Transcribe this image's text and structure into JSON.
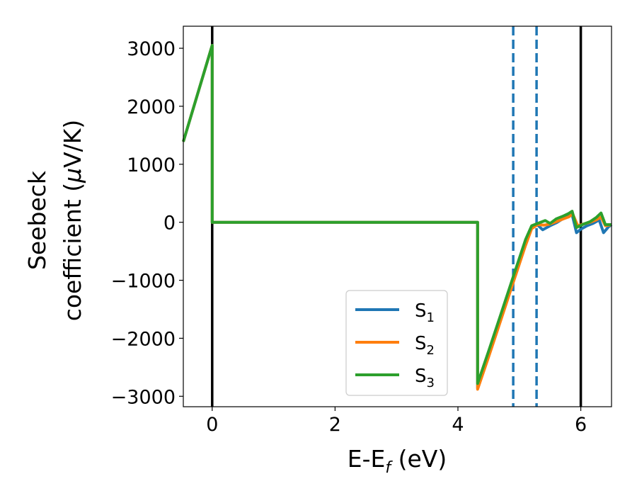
{
  "chart_data": {
    "type": "line",
    "title": "",
    "xlabel": "E-E",
    "xlabel_subscript": "f",
    "xlabel_units": " (eV)",
    "ylabel_line1": "Seebeck",
    "ylabel_line2": "coefficient  (",
    "ylabel_mu": "μ",
    "ylabel_units": "V/K)",
    "xlim": [
      -0.47,
      6.5
    ],
    "ylim": [
      -3180,
      3380
    ],
    "xticks": [
      0,
      2,
      4,
      6
    ],
    "xtick_labels": [
      "0",
      "2",
      "4",
      "6"
    ],
    "yticks": [
      3000,
      2000,
      1000,
      0,
      -1000,
      -2000,
      -3000
    ],
    "ytick_labels": [
      "3000",
      "2000",
      "1000",
      "0",
      "−1000",
      "−2000",
      "−3000"
    ],
    "grid": false,
    "legend_position": "lower-center",
    "vertical_lines": [
      {
        "x": 0.0,
        "style": "solid",
        "color": "#000000"
      },
      {
        "x": 6.0,
        "style": "solid",
        "color": "#000000"
      },
      {
        "x": 4.9,
        "style": "dashed",
        "color": "#1f77b4"
      },
      {
        "x": 5.28,
        "style": "dashed",
        "color": "#1f77b4"
      }
    ],
    "series": [
      {
        "name": "S",
        "subscript": "1",
        "color": "#1f77b4",
        "points": [
          [
            -0.47,
            1390
          ],
          [
            0.0,
            3050
          ],
          [
            0.0,
            0
          ],
          [
            4.32,
            0
          ],
          [
            4.32,
            -2860
          ],
          [
            4.5,
            -2300
          ],
          [
            4.7,
            -1650
          ],
          [
            4.9,
            -1000
          ],
          [
            5.1,
            -350
          ],
          [
            5.2,
            -80
          ],
          [
            5.3,
            -50
          ],
          [
            5.38,
            -130
          ],
          [
            5.5,
            -60
          ],
          [
            5.6,
            -10
          ],
          [
            5.72,
            70
          ],
          [
            5.8,
            110
          ],
          [
            5.86,
            130
          ],
          [
            5.93,
            -180
          ],
          [
            6.0,
            -120
          ],
          [
            6.1,
            -60
          ],
          [
            6.2,
            -20
          ],
          [
            6.3,
            40
          ],
          [
            6.37,
            -180
          ],
          [
            6.45,
            -80
          ],
          [
            6.5,
            -40
          ]
        ]
      },
      {
        "name": "S",
        "subscript": "2",
        "color": "#ff7f0e",
        "points": [
          [
            -0.47,
            1390
          ],
          [
            0.0,
            3050
          ],
          [
            0.0,
            0
          ],
          [
            4.32,
            0
          ],
          [
            4.32,
            -2880
          ],
          [
            4.5,
            -2320
          ],
          [
            4.7,
            -1680
          ],
          [
            4.9,
            -1040
          ],
          [
            5.1,
            -400
          ],
          [
            5.2,
            -110
          ],
          [
            5.3,
            -40
          ],
          [
            5.4,
            -50
          ],
          [
            5.5,
            -30
          ],
          [
            5.6,
            10
          ],
          [
            5.72,
            60
          ],
          [
            5.8,
            90
          ],
          [
            5.87,
            140
          ],
          [
            5.95,
            -60
          ],
          [
            6.05,
            -30
          ],
          [
            6.15,
            0
          ],
          [
            6.25,
            40
          ],
          [
            6.33,
            90
          ],
          [
            6.4,
            -60
          ],
          [
            6.5,
            -40
          ]
        ]
      },
      {
        "name": "S",
        "subscript": "3",
        "color": "#2ca02c",
        "points": [
          [
            -0.47,
            1390
          ],
          [
            0.0,
            3050
          ],
          [
            0.0,
            0
          ],
          [
            4.32,
            0
          ],
          [
            4.32,
            -2780
          ],
          [
            4.5,
            -2220
          ],
          [
            4.7,
            -1580
          ],
          [
            4.9,
            -940
          ],
          [
            5.1,
            -300
          ],
          [
            5.2,
            -60
          ],
          [
            5.3,
            -20
          ],
          [
            5.42,
            30
          ],
          [
            5.5,
            -20
          ],
          [
            5.6,
            60
          ],
          [
            5.72,
            110
          ],
          [
            5.8,
            150
          ],
          [
            5.86,
            190
          ],
          [
            5.93,
            -90
          ],
          [
            6.05,
            -30
          ],
          [
            6.15,
            10
          ],
          [
            6.25,
            80
          ],
          [
            6.33,
            160
          ],
          [
            6.4,
            -40
          ],
          [
            6.5,
            -40
          ]
        ]
      }
    ]
  }
}
